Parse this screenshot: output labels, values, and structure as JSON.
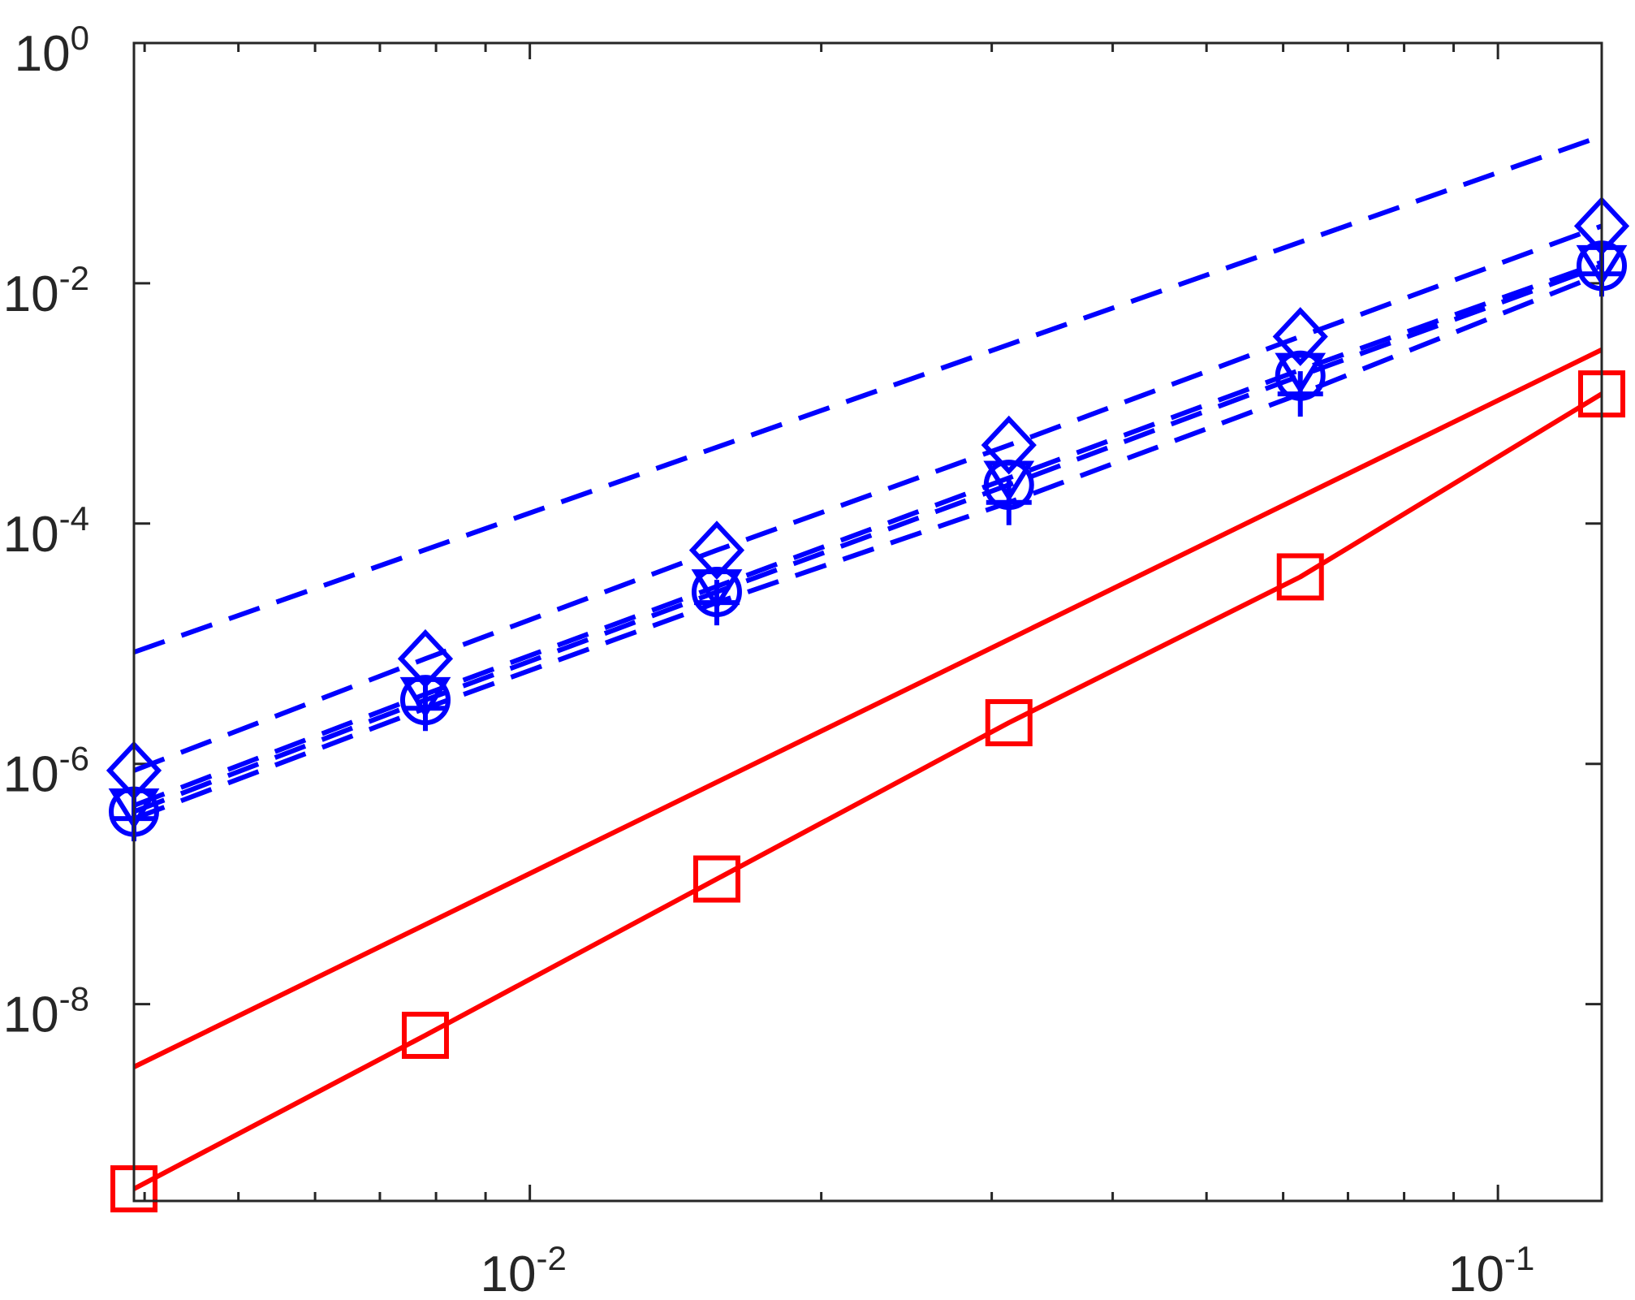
{
  "chart_data": {
    "type": "line",
    "title": "",
    "xlabel": "",
    "ylabel": "",
    "xscale": "log",
    "yscale": "log",
    "xlim": [
      0.0039,
      0.128
    ],
    "ylim": [
      2.3e-10,
      1
    ],
    "grid": false,
    "x_ticks": [
      {
        "value": 0.01,
        "base": "10",
        "exp": "-2"
      },
      {
        "value": 0.1,
        "base": "10",
        "exp": "-1"
      }
    ],
    "y_ticks": [
      {
        "value": 1,
        "base": "10",
        "exp": "0"
      },
      {
        "value": 0.01,
        "base": "10",
        "exp": "-2"
      },
      {
        "value": 0.0001,
        "base": "10",
        "exp": "-4"
      },
      {
        "value": 1e-06,
        "base": "10",
        "exp": "-6"
      },
      {
        "value": 1e-08,
        "base": "10",
        "exp": "-8"
      }
    ],
    "series": [
      {
        "color": "#0000ff",
        "line": "dashed",
        "marker": "none",
        "x": [
          0.0039,
          0.128
        ],
        "y": [
          8.5e-06,
          0.168
        ]
      },
      {
        "color": "#0000ff",
        "line": "dashed",
        "marker": "diamond",
        "x": [
          0.0039,
          0.0078,
          0.0156,
          0.03125,
          0.0625,
          0.128
        ],
        "y": [
          8.8e-07,
          7.5e-06,
          6e-05,
          0.00045,
          0.0036,
          0.03
        ]
      },
      {
        "color": "#0000ff",
        "line": "dashed",
        "marker": "circle",
        "x": [
          0.0039,
          0.0078,
          0.0156,
          0.03125,
          0.0625,
          0.128
        ],
        "y": [
          4e-07,
          3.4e-06,
          2.7e-05,
          0.00021,
          0.0017,
          0.014
        ]
      },
      {
        "color": "#0000ff",
        "line": "dashed",
        "marker": "plus",
        "x": [
          0.0039,
          0.0078,
          0.0156,
          0.03125,
          0.0625,
          0.128
        ],
        "y": [
          3.5e-07,
          2.9e-06,
          2.2e-05,
          0.00015,
          0.0012,
          0.012
        ]
      },
      {
        "color": "#0000ff",
        "line": "dashed",
        "marker": "triangle-down",
        "x": [
          0.0039,
          0.0078,
          0.0156,
          0.03125,
          0.0625,
          0.128
        ],
        "y": [
          4.5e-07,
          3.8e-06,
          3e-05,
          0.00024,
          0.0019,
          0.015
        ]
      },
      {
        "color": "#ff0000",
        "line": "solid",
        "marker": "none",
        "x": [
          0.0039,
          0.128
        ],
        "y": [
          3e-09,
          0.0028
        ]
      },
      {
        "color": "#ff0000",
        "line": "solid",
        "marker": "square",
        "x": [
          0.0039,
          0.0078,
          0.0156,
          0.03125,
          0.0625,
          0.128
        ],
        "y": [
          2.9e-10,
          5.5e-09,
          1.1e-07,
          2.2e-06,
          3.6e-05,
          0.0012
        ]
      }
    ]
  }
}
